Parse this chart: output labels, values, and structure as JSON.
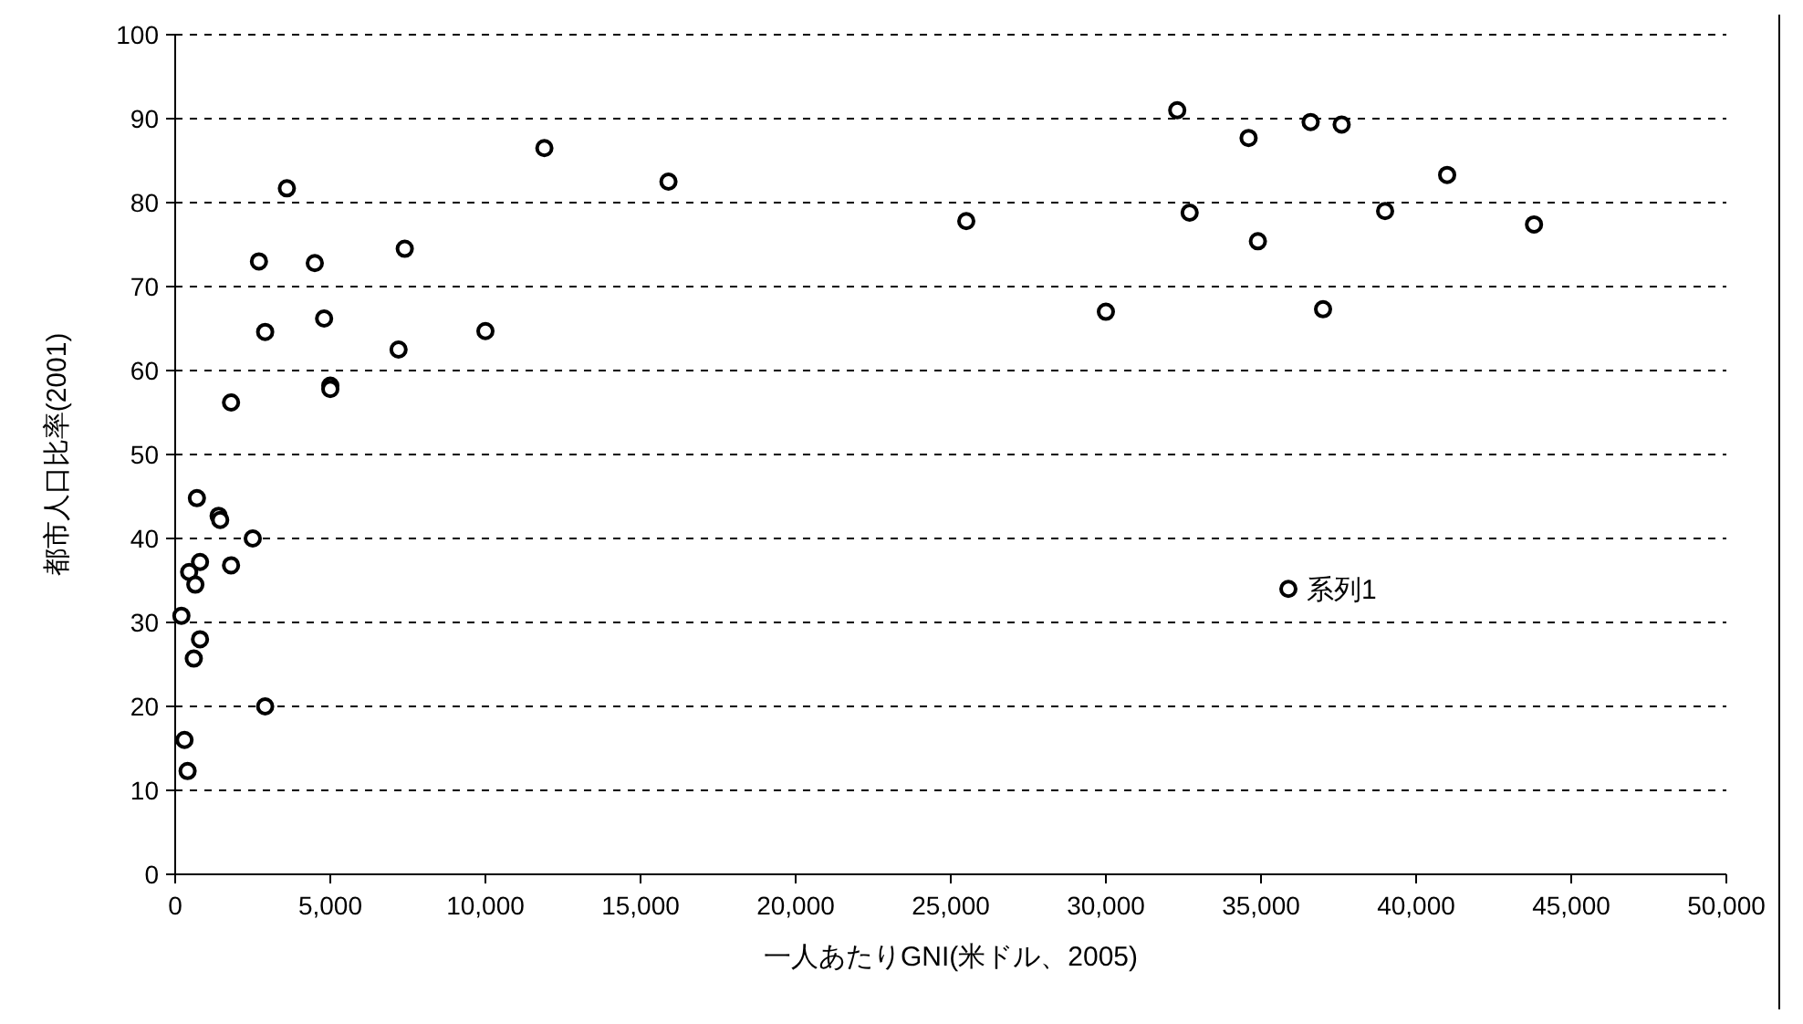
{
  "chart_data": {
    "type": "scatter",
    "xlabel": "一人あたりGNI(米ドル、2005)",
    "ylabel": "都市人口比率(2001)",
    "xlim": [
      0,
      50000
    ],
    "xticks": [
      {
        "value": 0,
        "label": "0"
      },
      {
        "value": 5000,
        "label": "5,000"
      },
      {
        "value": 10000,
        "label": "10,000"
      },
      {
        "value": 15000,
        "label": "15,000"
      },
      {
        "value": 20000,
        "label": "20,000"
      },
      {
        "value": 25000,
        "label": "25,000"
      },
      {
        "value": 30000,
        "label": "30,000"
      },
      {
        "value": 35000,
        "label": "35,000"
      },
      {
        "value": 40000,
        "label": "40,000"
      },
      {
        "value": 45000,
        "label": "45,000"
      },
      {
        "value": 50000,
        "label": "50,000"
      }
    ],
    "ylim": [
      0,
      100
    ],
    "yticks": [
      0,
      10,
      20,
      30,
      40,
      50,
      60,
      70,
      80,
      90,
      100
    ],
    "grid": "y",
    "legend": "right",
    "marker": "circle",
    "series": [
      {
        "name": "系列1",
        "color": "#000000",
        "x": [
          11900,
          15900,
          3600,
          7400,
          2700,
          4500,
          4800,
          2900,
          7200,
          10000,
          5000,
          5000,
          1800,
          700,
          1400,
          1450,
          2500,
          1800,
          800,
          450,
          650,
          200,
          800,
          600,
          2900,
          300,
          400,
          25500,
          30000,
          32300,
          32700,
          34600,
          34900,
          36600,
          37600,
          37000,
          39000,
          41000,
          43800
        ],
        "values": [
          86.5,
          82.5,
          81.7,
          74.5,
          73,
          72.8,
          66.2,
          64.6,
          62.5,
          64.7,
          58.2,
          57.8,
          56.2,
          44.8,
          42.7,
          42.2,
          40,
          36.8,
          37.2,
          36,
          34.5,
          30.8,
          28,
          25.7,
          20,
          16,
          12.3,
          77.8,
          67,
          91,
          78.8,
          87.7,
          75.4,
          89.6,
          89.3,
          67.3,
          79,
          83.3,
          77.4
        ]
      }
    ]
  }
}
